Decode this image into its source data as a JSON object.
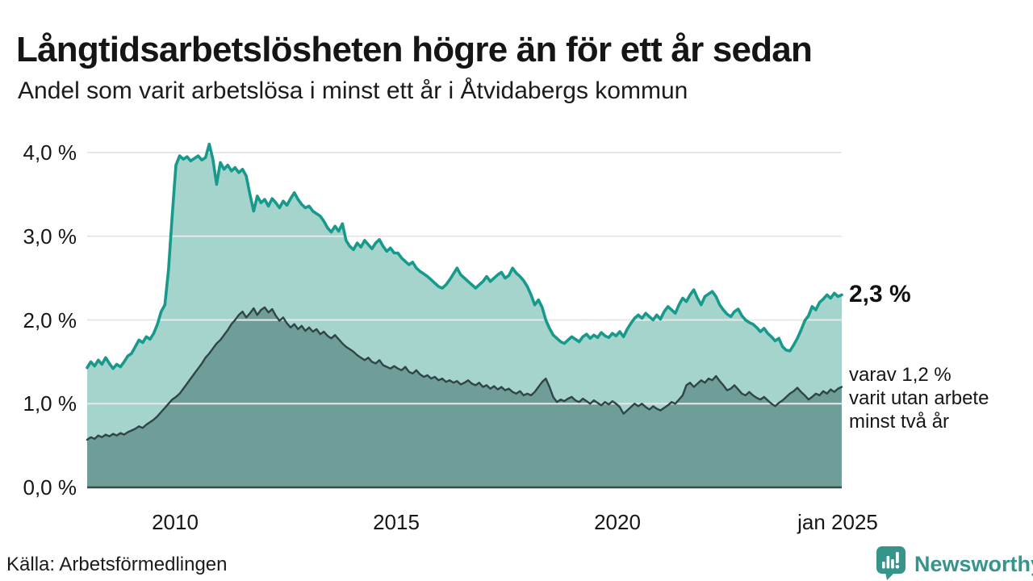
{
  "title": "Långtidsarbetslösheten högre än för ett år sedan",
  "subtitle": "Andel som varit arbetslösa i minst ett år i Åtvidabergs kommun",
  "source": "Källa: Arbetsförmedlingen",
  "branding": {
    "name": "Newsworthy",
    "color": "#37948b"
  },
  "annotations": {
    "series1_value": "2,3 %",
    "series2_lines": [
      "varav 1,2 %",
      "varit utan arbete",
      "minst två år"
    ]
  },
  "colors": {
    "series1_line": "#17998b",
    "series1_fill": "#a5d4cd",
    "series2_line": "#2f4547",
    "series2_fill": "#6f9e99",
    "grid": "#e8e8e8",
    "axis": "#3a4a4c",
    "text": "#161616"
  },
  "chart_data": {
    "type": "area",
    "title": "Långtidsarbetslösheten högre än för ett år sedan",
    "subtitle": "Andel som varit arbetslösa i minst ett år i Åtvidabergs kommun",
    "unit": "percent of workforce, monthly",
    "x_start": "2008-01",
    "x_end": "2025-01",
    "x_tick_labels": [
      "2010",
      "2015",
      "2020",
      "jan 2025"
    ],
    "x_tick_month_index": [
      24,
      84,
      144,
      204
    ],
    "y_ticks": [
      "0,0 %",
      "1,0 %",
      "2,0 %",
      "3,0 %",
      "4,0 %"
    ],
    "y_tick_values": [
      0,
      1,
      2,
      3,
      4
    ],
    "ylim": [
      0,
      4.35
    ],
    "grid": true,
    "legend_position": "end-of-line labels, right margin",
    "grid_color": "#e8e8e8",
    "axis_color": "#3a4a4c",
    "series": [
      {
        "name": "Arbetslösa minst ett år",
        "final_value": 2.3,
        "final_label": "2,3 %",
        "line_color": "#17998b",
        "fill_color": "#a5d4cd",
        "line_width": 3.6,
        "values": [
          1.43,
          1.5,
          1.45,
          1.52,
          1.47,
          1.55,
          1.48,
          1.42,
          1.47,
          1.44,
          1.5,
          1.57,
          1.6,
          1.68,
          1.76,
          1.73,
          1.8,
          1.77,
          1.84,
          1.95,
          2.1,
          2.18,
          2.6,
          3.25,
          3.85,
          3.96,
          3.92,
          3.95,
          3.9,
          3.93,
          3.96,
          3.91,
          3.94,
          4.1,
          3.92,
          3.62,
          3.88,
          3.8,
          3.85,
          3.78,
          3.82,
          3.76,
          3.8,
          3.72,
          3.5,
          3.3,
          3.48,
          3.4,
          3.44,
          3.36,
          3.45,
          3.4,
          3.34,
          3.42,
          3.37,
          3.45,
          3.52,
          3.44,
          3.38,
          3.34,
          3.36,
          3.3,
          3.27,
          3.24,
          3.18,
          3.1,
          3.05,
          3.12,
          3.06,
          3.15,
          2.95,
          2.88,
          2.84,
          2.92,
          2.87,
          2.95,
          2.9,
          2.85,
          2.92,
          2.96,
          2.88,
          2.82,
          2.86,
          2.8,
          2.8,
          2.74,
          2.7,
          2.66,
          2.69,
          2.62,
          2.58,
          2.55,
          2.52,
          2.48,
          2.44,
          2.4,
          2.38,
          2.42,
          2.48,
          2.55,
          2.62,
          2.54,
          2.5,
          2.46,
          2.42,
          2.38,
          2.42,
          2.46,
          2.52,
          2.46,
          2.5,
          2.54,
          2.57,
          2.5,
          2.53,
          2.62,
          2.56,
          2.52,
          2.47,
          2.4,
          2.3,
          2.18,
          2.24,
          2.15,
          2.0,
          1.9,
          1.82,
          1.78,
          1.74,
          1.72,
          1.76,
          1.8,
          1.77,
          1.74,
          1.8,
          1.83,
          1.78,
          1.82,
          1.79,
          1.85,
          1.81,
          1.79,
          1.84,
          1.81,
          1.86,
          1.8,
          1.89,
          1.96,
          2.02,
          2.06,
          2.02,
          2.08,
          2.04,
          2.0,
          2.06,
          2.01,
          2.1,
          2.16,
          2.12,
          2.08,
          2.18,
          2.26,
          2.22,
          2.3,
          2.36,
          2.26,
          2.18,
          2.28,
          2.31,
          2.34,
          2.28,
          2.18,
          2.12,
          2.07,
          2.04,
          2.1,
          2.13,
          2.05,
          2.0,
          1.97,
          1.95,
          1.91,
          1.86,
          1.9,
          1.84,
          1.8,
          1.75,
          1.78,
          1.68,
          1.64,
          1.63,
          1.7,
          1.78,
          1.88,
          1.99,
          2.05,
          2.16,
          2.12,
          2.21,
          2.25,
          2.3,
          2.26,
          2.32,
          2.28,
          2.3
        ]
      },
      {
        "name": "varav utan arbete minst två år",
        "final_value": 1.2,
        "final_label": "varav 1,2 % varit utan arbete minst två år",
        "line_color": "#2f4547",
        "fill_color": "#6f9e99",
        "line_width": 2.4,
        "values": [
          0.57,
          0.6,
          0.58,
          0.62,
          0.6,
          0.63,
          0.61,
          0.64,
          0.62,
          0.65,
          0.63,
          0.66,
          0.68,
          0.7,
          0.73,
          0.71,
          0.75,
          0.78,
          0.81,
          0.85,
          0.9,
          0.95,
          1.0,
          1.05,
          1.08,
          1.12,
          1.18,
          1.24,
          1.3,
          1.36,
          1.42,
          1.48,
          1.55,
          1.6,
          1.66,
          1.72,
          1.76,
          1.82,
          1.88,
          1.95,
          2.0,
          2.06,
          2.1,
          2.03,
          2.08,
          2.14,
          2.06,
          2.12,
          2.15,
          2.09,
          2.13,
          2.05,
          1.99,
          2.03,
          1.96,
          1.91,
          1.95,
          1.89,
          1.93,
          1.87,
          1.91,
          1.86,
          1.89,
          1.83,
          1.86,
          1.81,
          1.78,
          1.82,
          1.77,
          1.72,
          1.68,
          1.65,
          1.62,
          1.58,
          1.55,
          1.52,
          1.55,
          1.5,
          1.48,
          1.52,
          1.46,
          1.44,
          1.42,
          1.45,
          1.42,
          1.4,
          1.44,
          1.38,
          1.36,
          1.4,
          1.35,
          1.32,
          1.34,
          1.3,
          1.32,
          1.28,
          1.3,
          1.26,
          1.28,
          1.25,
          1.27,
          1.23,
          1.25,
          1.28,
          1.24,
          1.22,
          1.25,
          1.2,
          1.22,
          1.18,
          1.21,
          1.17,
          1.2,
          1.16,
          1.18,
          1.14,
          1.12,
          1.15,
          1.1,
          1.12,
          1.1,
          1.14,
          1.2,
          1.26,
          1.3,
          1.2,
          1.08,
          1.02,
          1.05,
          1.03,
          1.06,
          1.08,
          1.04,
          1.02,
          1.06,
          1.03,
          1.0,
          1.04,
          1.01,
          0.98,
          1.02,
          0.99,
          1.03,
          1.0,
          0.96,
          0.88,
          0.92,
          0.96,
          1.0,
          0.97,
          1.0,
          0.96,
          0.93,
          0.97,
          0.94,
          0.92,
          0.95,
          0.98,
          1.02,
          1.0,
          1.05,
          1.1,
          1.22,
          1.25,
          1.2,
          1.24,
          1.28,
          1.25,
          1.3,
          1.28,
          1.33,
          1.27,
          1.22,
          1.16,
          1.18,
          1.22,
          1.17,
          1.12,
          1.1,
          1.14,
          1.1,
          1.07,
          1.05,
          1.08,
          1.04,
          1.0,
          0.97,
          1.01,
          1.04,
          1.08,
          1.12,
          1.15,
          1.19,
          1.14,
          1.1,
          1.05,
          1.08,
          1.12,
          1.1,
          1.15,
          1.12,
          1.17,
          1.14,
          1.18,
          1.2
        ]
      }
    ]
  }
}
